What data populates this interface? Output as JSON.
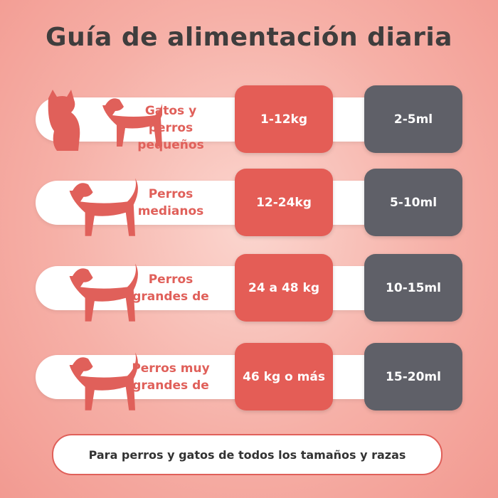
{
  "header": {
    "title": "Guía de alimentación diaria"
  },
  "rows": [
    {
      "label": [
        "Gatos y perros",
        "pequeños"
      ],
      "weight": "1-12kg",
      "dose": "2-5ml"
    },
    {
      "label": [
        "Perros",
        "medianos"
      ],
      "weight": "12-24kg",
      "dose": "5-10ml"
    },
    {
      "label": [
        "Perros",
        "grandes de"
      ],
      "weight": "24 a 48 kg",
      "dose": "10-15ml"
    },
    {
      "label": [
        "Perros muy",
        "grandes de"
      ],
      "weight": "46 kg o más",
      "dose": "15-20ml"
    }
  ],
  "footer": {
    "note": "Para perros y gatos de todos los tamaños y razas"
  }
}
